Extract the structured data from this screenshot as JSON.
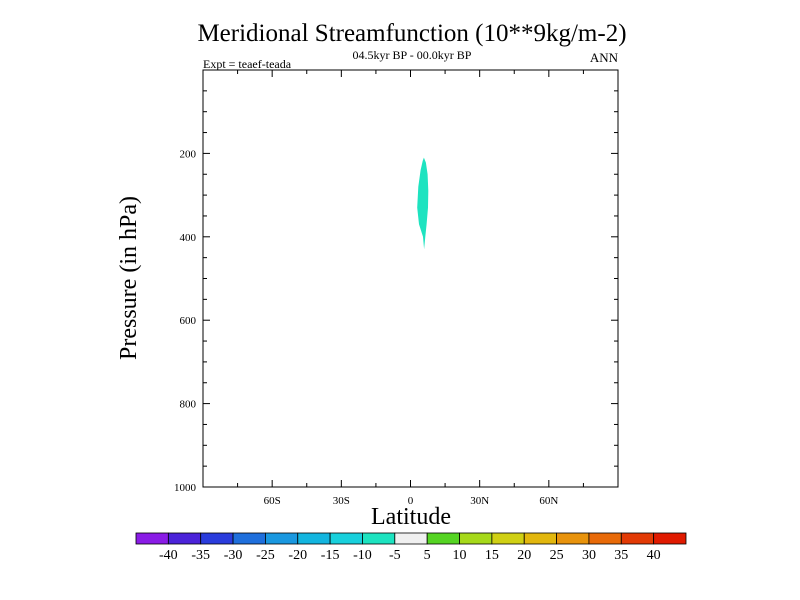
{
  "chart_data": {
    "type": "contour",
    "title": "Meridional Streamfunction (10**9kg/m-2)",
    "subtitle": "04.5kyr BP - 00.0kyr BP",
    "left_label": "Expt = teaef-teada",
    "right_label": "ANN",
    "xlabel": "Latitude",
    "ylabel": "Pressure (in hPa)",
    "xlim": [
      -90,
      90
    ],
    "ylim": [
      0,
      1000
    ],
    "y_reversed": true,
    "x_ticks": [
      {
        "value": -60,
        "label": "60S"
      },
      {
        "value": -30,
        "label": "30S"
      },
      {
        "value": 0,
        "label": "0"
      },
      {
        "value": 30,
        "label": "30N"
      },
      {
        "value": 60,
        "label": "60N"
      }
    ],
    "y_ticks": [
      {
        "value": 200,
        "label": "200"
      },
      {
        "value": 400,
        "label": "400"
      },
      {
        "value": 600,
        "label": "600"
      },
      {
        "value": 800,
        "label": "800"
      },
      {
        "value": 1000,
        "label": "1000"
      }
    ],
    "contour_regions": [
      {
        "level_range": [
          -10,
          -5
        ],
        "color": "#1ee3c0",
        "polygon": [
          [
            5.8,
            210
          ],
          [
            6.7,
            222
          ],
          [
            7.4,
            250
          ],
          [
            7.7,
            290
          ],
          [
            7.6,
            330
          ],
          [
            7.0,
            370
          ],
          [
            6.4,
            400
          ],
          [
            5.9,
            430
          ],
          [
            5.4,
            400
          ],
          [
            3.7,
            370
          ],
          [
            2.9,
            330
          ],
          [
            3.4,
            280
          ],
          [
            4.4,
            240
          ],
          [
            5.3,
            218
          ]
        ]
      }
    ],
    "colorbar": {
      "labels": [
        "-40",
        "-35",
        "-30",
        "-25",
        "-20",
        "-15",
        "-10",
        "-5",
        "5",
        "10",
        "15",
        "20",
        "25",
        "30",
        "35",
        "40"
      ],
      "colors": [
        "#8a1ce6",
        "#4b23d9",
        "#2a3cdc",
        "#1f6fdc",
        "#1a98e0",
        "#13b5df",
        "#18d0dc",
        "#1de3c0",
        "#f0f0f0",
        "#55d423",
        "#a6d91a",
        "#d0d014",
        "#e2b70e",
        "#e8930c",
        "#e86a08",
        "#e23a05",
        "#e01a00"
      ]
    }
  }
}
